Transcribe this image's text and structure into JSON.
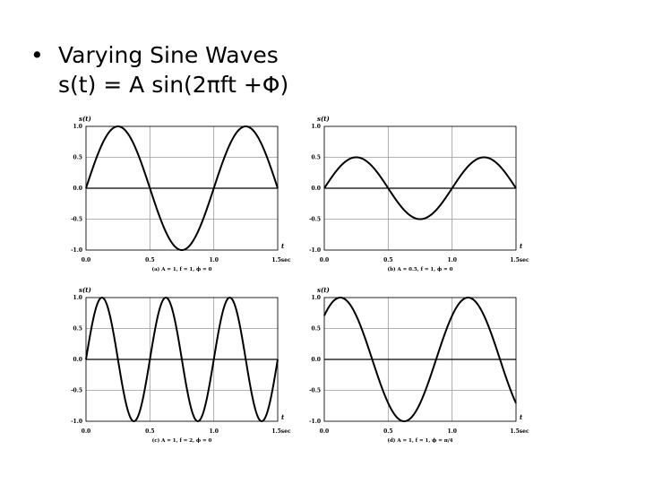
{
  "slide": {
    "bullet": "•",
    "title": "Varying Sine Waves",
    "formula": "s(t) = A sin(2πft +Φ)"
  },
  "chart_data": [
    {
      "type": "line",
      "function": "sine",
      "A": 1,
      "f": 1,
      "phase": 0,
      "xlim": [
        0,
        1.5
      ],
      "ylim": [
        -1,
        1
      ],
      "x_ticks": [
        "0.0",
        "0.5",
        "1.0",
        "1.5sec"
      ],
      "y_ticks": [
        "1.0",
        "0.5",
        "0.0",
        "-0.5",
        "-1.0"
      ],
      "ylabel": "s(t)",
      "xlabel": "t",
      "caption": "(a) A = 1, f = 1, ϕ = 0",
      "grid": true
    },
    {
      "type": "line",
      "function": "sine",
      "A": 0.5,
      "f": 1,
      "phase": 0,
      "xlim": [
        0,
        1.5
      ],
      "ylim": [
        -1,
        1
      ],
      "x_ticks": [
        "0.0",
        "0.5",
        "1.0",
        "1.5sec"
      ],
      "y_ticks": [
        "1.0",
        "0.5",
        "0.0",
        "-0.5",
        "-1.0"
      ],
      "ylabel": "s(t)",
      "xlabel": "t",
      "caption": "(b) A = 0.5, f = 1, ϕ = 0",
      "grid": true
    },
    {
      "type": "line",
      "function": "sine",
      "A": 1,
      "f": 2,
      "phase": 0,
      "xlim": [
        0,
        1.5
      ],
      "ylim": [
        -1,
        1
      ],
      "x_ticks": [
        "0.0",
        "0.5",
        "1.0",
        "1.5sec"
      ],
      "y_ticks": [
        "1.0",
        "0.5",
        "0.0",
        "-0.5",
        "-1.0"
      ],
      "ylabel": "s(t)",
      "xlabel": "t",
      "caption": "(c) A = 1, f = 2, ϕ = 0",
      "grid": true
    },
    {
      "type": "line",
      "function": "sine",
      "A": 1,
      "f": 1,
      "phase": 0.7853981634,
      "xlim": [
        0,
        1.5
      ],
      "ylim": [
        -1,
        1
      ],
      "x_ticks": [
        "0.0",
        "0.5",
        "1.0",
        "1.5sec"
      ],
      "y_ticks": [
        "1.0",
        "0.5",
        "0.0",
        "-0.5",
        "-1.0"
      ],
      "ylabel": "s(t)",
      "xlabel": "t",
      "caption": "(d) A = 1, f = 1, ϕ = π/4",
      "grid": true
    }
  ]
}
